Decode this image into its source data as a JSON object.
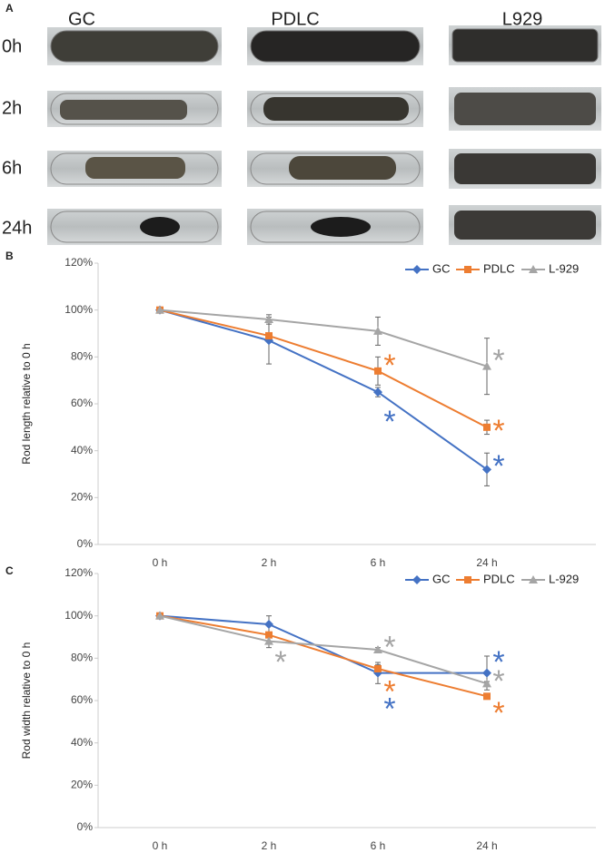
{
  "panel_a": {
    "label": "A",
    "columns": [
      "GC",
      "PDLC",
      "L929"
    ],
    "rows": [
      "0h",
      "2h",
      "6h",
      "24h"
    ]
  },
  "chart_data": [
    {
      "type": "line",
      "panel_label": "B",
      "y_label": "Rod length relative to 0 h",
      "categories": [
        "0 h",
        "2 h",
        "6 h",
        "24 h"
      ],
      "ylim": [
        0,
        120
      ],
      "yticks": [
        {
          "value": 0,
          "label": "0%"
        },
        {
          "value": 20,
          "label": "20%"
        },
        {
          "value": 40,
          "label": "40%"
        },
        {
          "value": 60,
          "label": "60%"
        },
        {
          "value": 80,
          "label": "80%"
        },
        {
          "value": 100,
          "label": "100%"
        },
        {
          "value": 120,
          "label": "120%"
        }
      ],
      "legend": "top-right",
      "series": [
        {
          "name": "GC",
          "color": "#4472c4",
          "marker": "diamond",
          "values": [
            100,
            87,
            65,
            32
          ],
          "errors": [
            0,
            10,
            2,
            7
          ]
        },
        {
          "name": "PDLC",
          "color": "#ed7d31",
          "marker": "square",
          "values": [
            100,
            89,
            74,
            50
          ],
          "errors": [
            0,
            1,
            6,
            3
          ]
        },
        {
          "name": "L-929",
          "color": "#a5a5a5",
          "marker": "triangle",
          "values": [
            100,
            96,
            91,
            76
          ],
          "errors": [
            0,
            2,
            6,
            12
          ]
        }
      ],
      "annotations": [
        {
          "text": "*",
          "color": "#ed7d31",
          "category": 2,
          "y": 79
        },
        {
          "text": "*",
          "color": "#4472c4",
          "category": 2,
          "y": 55
        },
        {
          "text": "*",
          "color": "#a5a5a5",
          "category": 3,
          "y": 81
        },
        {
          "text": "*",
          "color": "#ed7d31",
          "category": 3,
          "y": 51
        },
        {
          "text": "*",
          "color": "#4472c4",
          "category": 3,
          "y": 36
        }
      ]
    },
    {
      "type": "line",
      "panel_label": "C",
      "y_label": "Rod width relative to 0 h",
      "categories": [
        "0 h",
        "2 h",
        "6 h",
        "24 h"
      ],
      "ylim": [
        0,
        120
      ],
      "yticks": [
        {
          "value": 0,
          "label": "0%"
        },
        {
          "value": 20,
          "label": "20%"
        },
        {
          "value": 40,
          "label": "40%"
        },
        {
          "value": 60,
          "label": "60%"
        },
        {
          "value": 80,
          "label": "80%"
        },
        {
          "value": 100,
          "label": "100%"
        },
        {
          "value": 120,
          "label": "120%"
        }
      ],
      "legend": "top-right",
      "series": [
        {
          "name": "GC",
          "color": "#4472c4",
          "marker": "diamond",
          "values": [
            100,
            96,
            73,
            73
          ],
          "errors": [
            0,
            4,
            5,
            8
          ]
        },
        {
          "name": "PDLC",
          "color": "#ed7d31",
          "marker": "square",
          "values": [
            100,
            91,
            75,
            62
          ],
          "errors": [
            0,
            1,
            2,
            1
          ]
        },
        {
          "name": "L-929",
          "color": "#a5a5a5",
          "marker": "triangle",
          "values": [
            100,
            88,
            84,
            68
          ],
          "errors": [
            0,
            3,
            1,
            1
          ]
        }
      ],
      "annotations": [
        {
          "text": "*",
          "color": "#a5a5a5",
          "category": 1,
          "y": 81
        },
        {
          "text": "*",
          "color": "#a5a5a5",
          "category": 2,
          "y": 88
        },
        {
          "text": "*",
          "color": "#ed7d31",
          "category": 2,
          "y": 67
        },
        {
          "text": "*",
          "color": "#4472c4",
          "category": 2,
          "y": 59
        },
        {
          "text": "*",
          "color": "#4472c4",
          "category": 3,
          "y": 81
        },
        {
          "text": "*",
          "color": "#a5a5a5",
          "category": 3,
          "y": 72
        },
        {
          "text": "*",
          "color": "#ed7d31",
          "category": 3,
          "y": 57
        }
      ]
    }
  ]
}
